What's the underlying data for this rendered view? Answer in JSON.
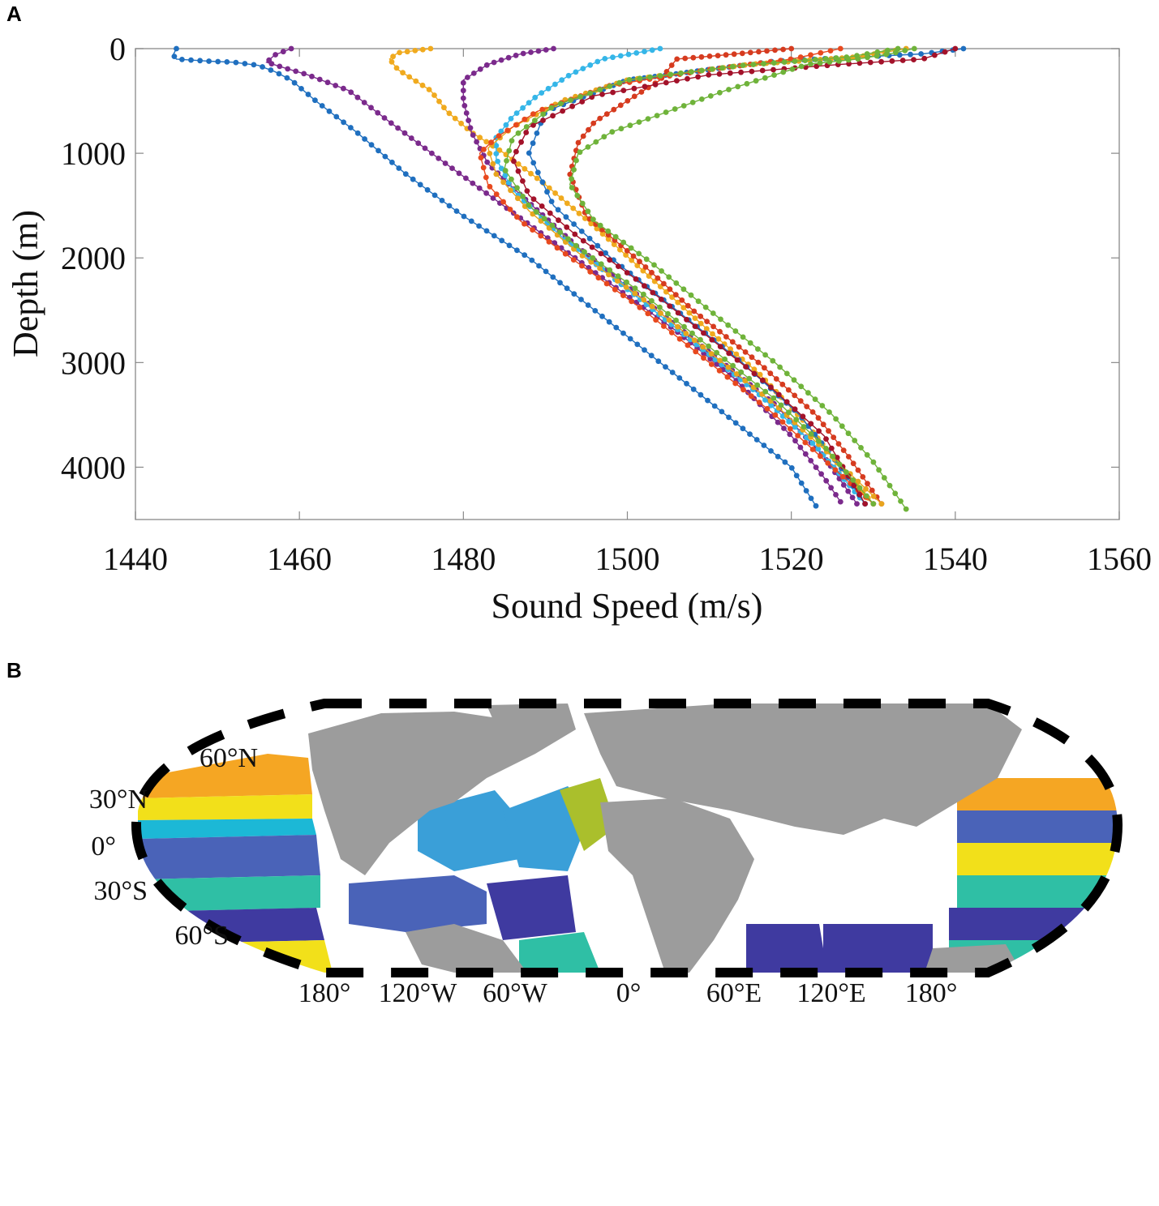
{
  "panels": {
    "a_label": "A",
    "b_label": "B"
  },
  "chart_data": [
    {
      "type": "line",
      "panel": "A",
      "xlabel": "Sound Speed (m/s)",
      "ylabel": "Depth (m)",
      "xlim": [
        1440,
        1560
      ],
      "ylim": [
        4500,
        0
      ],
      "y_inverted": true,
      "xticks": [
        1440,
        1460,
        1480,
        1500,
        1520,
        1540,
        1560
      ],
      "yticks": [
        0,
        1000,
        2000,
        3000,
        4000
      ],
      "grid": false,
      "legend": "none",
      "markers": "dot",
      "series": [
        {
          "color": "#1f6fbf",
          "points": [
            [
              1445,
              0
            ],
            [
              1444.6,
              60
            ],
            [
              1445,
              100
            ],
            [
              1449,
              120
            ],
            [
              1452,
              130
            ],
            [
              1455,
              160
            ],
            [
              1457,
              220
            ],
            [
              1459,
              300
            ],
            [
              1462,
              500
            ],
            [
              1467,
              800
            ],
            [
              1473,
              1200
            ],
            [
              1480,
              1600
            ],
            [
              1488,
              2000
            ],
            [
              1496,
              2500
            ],
            [
              1504,
              3000
            ],
            [
              1512,
              3500
            ],
            [
              1520,
              4000
            ],
            [
              1523,
              4370
            ]
          ]
        },
        {
          "color": "#7b2a8c",
          "points": [
            [
              1459,
              0
            ],
            [
              1457,
              60
            ],
            [
              1456,
              130
            ],
            [
              1458,
              180
            ],
            [
              1461,
              250
            ],
            [
              1466,
              400
            ],
            [
              1471,
              700
            ],
            [
              1477,
              1050
            ],
            [
              1484,
              1450
            ],
            [
              1491,
              1850
            ],
            [
              1498,
              2250
            ],
            [
              1506,
              2700
            ],
            [
              1513,
              3150
            ],
            [
              1520,
              3700
            ],
            [
              1524,
              4100
            ],
            [
              1526,
              4330
            ]
          ]
        },
        {
          "color": "#f0aa1e",
          "points": [
            [
              1476,
              0
            ],
            [
              1472,
              40
            ],
            [
              1471,
              100
            ],
            [
              1472,
              200
            ],
            [
              1474,
              300
            ],
            [
              1476,
              400
            ],
            [
              1478,
              600
            ],
            [
              1481,
              800
            ],
            [
              1485,
              1000
            ],
            [
              1490,
              1300
            ],
            [
              1496,
              1700
            ],
            [
              1503,
              2200
            ],
            [
              1510,
              2700
            ],
            [
              1516,
              3100
            ],
            [
              1522,
              3600
            ],
            [
              1526,
              4000
            ],
            [
              1530,
              4350
            ]
          ]
        },
        {
          "color": "#7b2a8c",
          "points": [
            [
              1491,
              0
            ],
            [
              1487,
              50
            ],
            [
              1483,
              150
            ],
            [
              1480,
              300
            ],
            [
              1480,
              500
            ],
            [
              1481,
              800
            ],
            [
              1483,
              1100
            ],
            [
              1487,
              1400
            ],
            [
              1494,
              1900
            ],
            [
              1502,
              2400
            ],
            [
              1510,
              2900
            ],
            [
              1518,
              3400
            ],
            [
              1524,
              3900
            ],
            [
              1528,
              4350
            ]
          ]
        },
        {
          "color": "#35b6e8",
          "points": [
            [
              1504,
              0
            ],
            [
              1497,
              100
            ],
            [
              1493,
              250
            ],
            [
              1489,
              450
            ],
            [
              1486,
              650
            ],
            [
              1484,
              850
            ],
            [
              1484,
              1050
            ],
            [
              1486,
              1350
            ],
            [
              1492,
              1800
            ],
            [
              1500,
              2300
            ],
            [
              1508,
              2800
            ],
            [
              1516,
              3300
            ],
            [
              1523,
              3800
            ],
            [
              1529,
              4350
            ]
          ]
        },
        {
          "color": "#1f6fbf",
          "points": [
            [
              1541,
              0
            ],
            [
              1536,
              50
            ],
            [
              1518,
              120
            ],
            [
              1500,
              300
            ],
            [
              1490,
              600
            ],
            [
              1488,
              1000
            ],
            [
              1491,
              1500
            ],
            [
              1498,
              2000
            ],
            [
              1506,
              2500
            ],
            [
              1514,
              3000
            ],
            [
              1521,
              3500
            ],
            [
              1526,
              4000
            ],
            [
              1529,
              4350
            ]
          ]
        },
        {
          "color": "#d63b1f",
          "points": [
            [
              1520,
              0
            ],
            [
              1512,
              60
            ],
            [
              1506,
              100
            ],
            [
              1505,
              200
            ],
            [
              1504,
              300
            ],
            [
              1502,
              400
            ],
            [
              1499,
              550
            ],
            [
              1496,
              700
            ],
            [
              1494,
              900
            ],
            [
              1493,
              1200
            ],
            [
              1495,
              1600
            ],
            [
              1501,
              2000
            ],
            [
              1508,
              2500
            ],
            [
              1516,
              3000
            ],
            [
              1523,
              3500
            ],
            [
              1527,
              3900
            ],
            [
              1531,
              4350
            ]
          ]
        },
        {
          "color": "#e8a51e",
          "points": [
            [
              1534,
              0
            ],
            [
              1528,
              80
            ],
            [
              1515,
              150
            ],
            [
              1500,
              300
            ],
            [
              1492,
              500
            ],
            [
              1486,
              750
            ],
            [
              1483,
              950
            ],
            [
              1484,
              1200
            ],
            [
              1488,
              1550
            ],
            [
              1494,
              1950
            ],
            [
              1502,
              2400
            ],
            [
              1510,
              2900
            ],
            [
              1518,
              3400
            ],
            [
              1525,
              3900
            ],
            [
              1531,
              4350
            ]
          ]
        },
        {
          "color": "#e8491e",
          "points": [
            [
              1526,
              0
            ],
            [
              1520,
              100
            ],
            [
              1510,
              200
            ],
            [
              1498,
              350
            ],
            [
              1489,
              600
            ],
            [
              1484,
              850
            ],
            [
              1482,
              1000
            ],
            [
              1483,
              1300
            ],
            [
              1487,
              1650
            ],
            [
              1494,
              2050
            ],
            [
              1502,
              2500
            ],
            [
              1510,
              3000
            ],
            [
              1518,
              3500
            ],
            [
              1525,
              4000
            ],
            [
              1530,
              4350
            ]
          ]
        },
        {
          "color": "#a3122a",
          "points": [
            [
              1540,
              0
            ],
            [
              1536,
              100
            ],
            [
              1526,
              150
            ],
            [
              1510,
              250
            ],
            [
              1496,
              450
            ],
            [
              1488,
              750
            ],
            [
              1486,
              1050
            ],
            [
              1488,
              1400
            ],
            [
              1494,
              1800
            ],
            [
              1501,
              2200
            ],
            [
              1509,
              2700
            ],
            [
              1517,
              3200
            ],
            [
              1524,
              3700
            ],
            [
              1529,
              4350
            ]
          ]
        },
        {
          "color": "#6fb33a",
          "points": [
            [
              1535,
              0
            ],
            [
              1532,
              50
            ],
            [
              1528,
              100
            ],
            [
              1522,
              150
            ],
            [
              1518,
              250
            ],
            [
              1512,
              400
            ],
            [
              1505,
              600
            ],
            [
              1498,
              800
            ],
            [
              1494,
              1000
            ],
            [
              1493,
              1300
            ],
            [
              1496,
              1650
            ],
            [
              1503,
              2050
            ],
            [
              1510,
              2500
            ],
            [
              1518,
              3000
            ],
            [
              1525,
              3500
            ],
            [
              1530,
              3950
            ],
            [
              1534,
              4400
            ]
          ]
        },
        {
          "color": "#6fb33a",
          "points": [
            [
              1533,
              0
            ],
            [
              1527,
              80
            ],
            [
              1514,
              160
            ],
            [
              1500,
              300
            ],
            [
              1491,
              550
            ],
            [
              1486,
              850
            ],
            [
              1485,
              1150
            ],
            [
              1488,
              1500
            ],
            [
              1494,
              1900
            ],
            [
              1502,
              2350
            ],
            [
              1510,
              2850
            ],
            [
              1518,
              3350
            ],
            [
              1524,
              3800
            ],
            [
              1530,
              4350
            ]
          ]
        }
      ]
    },
    {
      "type": "map",
      "panel": "B",
      "projection": "Robinson",
      "lat_ticks": [
        "60°N",
        "30°N",
        "0°",
        "30°S",
        "60°S"
      ],
      "lon_ticks": [
        "180°",
        "120°W",
        "60°W",
        "0°",
        "60°E",
        "120°E",
        "180°"
      ],
      "colors": {
        "land": "#9c9c9c",
        "ocean_blank": "#ffffff",
        "frame": "#000000",
        "classes": [
          "#f5a623",
          "#f2e01a",
          "#2fbfa5",
          "#1cb8d6",
          "#3a9fd8",
          "#4a63b8",
          "#3f3aa0",
          "#67bb56",
          "#aabf2c",
          "#4f78c9"
        ]
      }
    }
  ]
}
